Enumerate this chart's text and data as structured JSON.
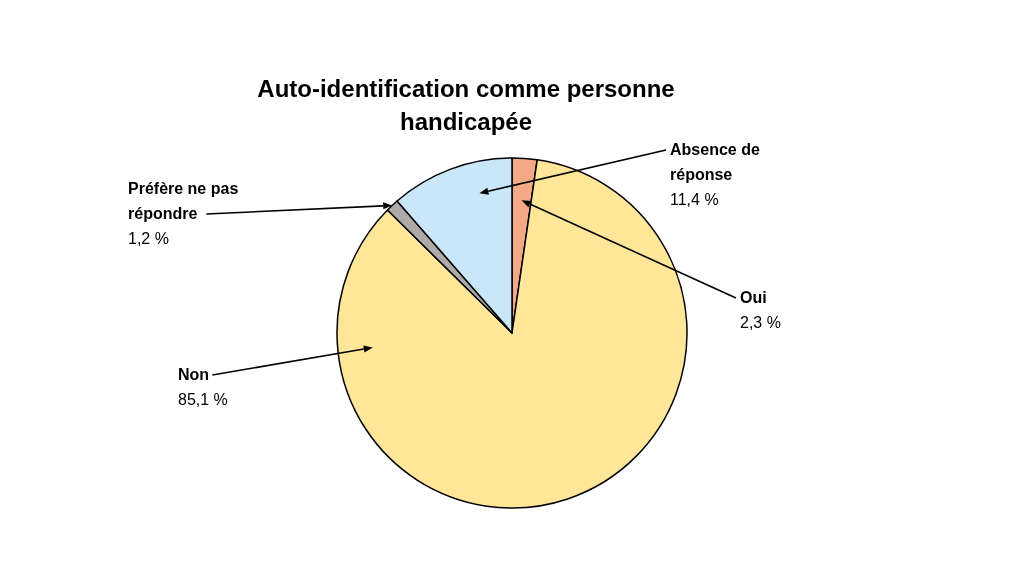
{
  "chart_data": {
    "type": "pie",
    "title": "Auto-identification comme personne handicapée",
    "categories": [
      "Oui",
      "Non",
      "Préfère ne pas répondre",
      "Absence de réponse"
    ],
    "values": [
      2.3,
      85.1,
      1.2,
      11.4
    ],
    "colors": [
      "#f4a986",
      "#ffe699",
      "#aeaaaa",
      "#c9e7f8"
    ],
    "value_labels": [
      "2,3 %",
      "85,1 %",
      "1,2 %",
      "11,4 %"
    ]
  }
}
